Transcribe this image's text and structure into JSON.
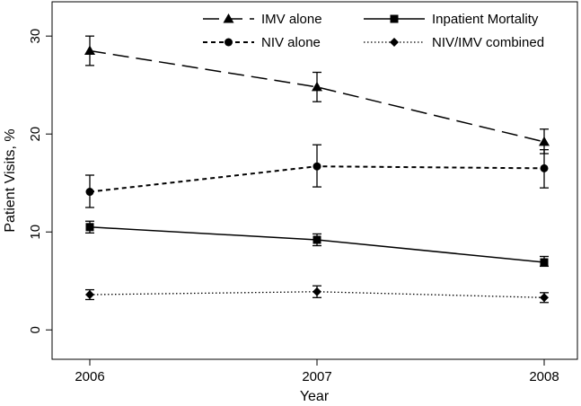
{
  "chart_data": {
    "type": "line",
    "title": "",
    "xlabel": "Year",
    "ylabel": "Patient Visits, %",
    "x": [
      2006,
      2007,
      2008
    ],
    "x_tick_labels": [
      "2006",
      "2007",
      "2008"
    ],
    "y_ticks": [
      0,
      10,
      20,
      30
    ],
    "y_tick_labels": [
      "0",
      "10",
      "20",
      "30"
    ],
    "ylim": [
      -3,
      33.5
    ],
    "grid": false,
    "legend_position": "top",
    "series": [
      {
        "name": "IMV alone",
        "values": [
          28.5,
          24.8,
          19.2
        ],
        "error_low": [
          27.0,
          23.3,
          18.0
        ],
        "error_high": [
          30.0,
          26.3,
          20.5
        ],
        "line_style": "long-dash",
        "marker": "triangle"
      },
      {
        "name": "Inpatient Mortality",
        "values": [
          10.5,
          9.2,
          6.9
        ],
        "error_low": [
          9.9,
          8.6,
          6.5
        ],
        "error_high": [
          11.1,
          9.8,
          7.5
        ],
        "line_style": "solid",
        "marker": "square"
      },
      {
        "name": "NIV alone",
        "values": [
          14.1,
          16.7,
          16.5
        ],
        "error_low": [
          12.5,
          14.6,
          14.5
        ],
        "error_high": [
          15.8,
          18.9,
          18.4
        ],
        "line_style": "dashed",
        "marker": "circle"
      },
      {
        "name": "NIV/IMV combined",
        "values": [
          3.6,
          3.9,
          3.3
        ],
        "error_low": [
          3.1,
          3.3,
          2.8
        ],
        "error_high": [
          4.1,
          4.5,
          3.8
        ],
        "line_style": "dotted",
        "marker": "diamond"
      }
    ]
  }
}
